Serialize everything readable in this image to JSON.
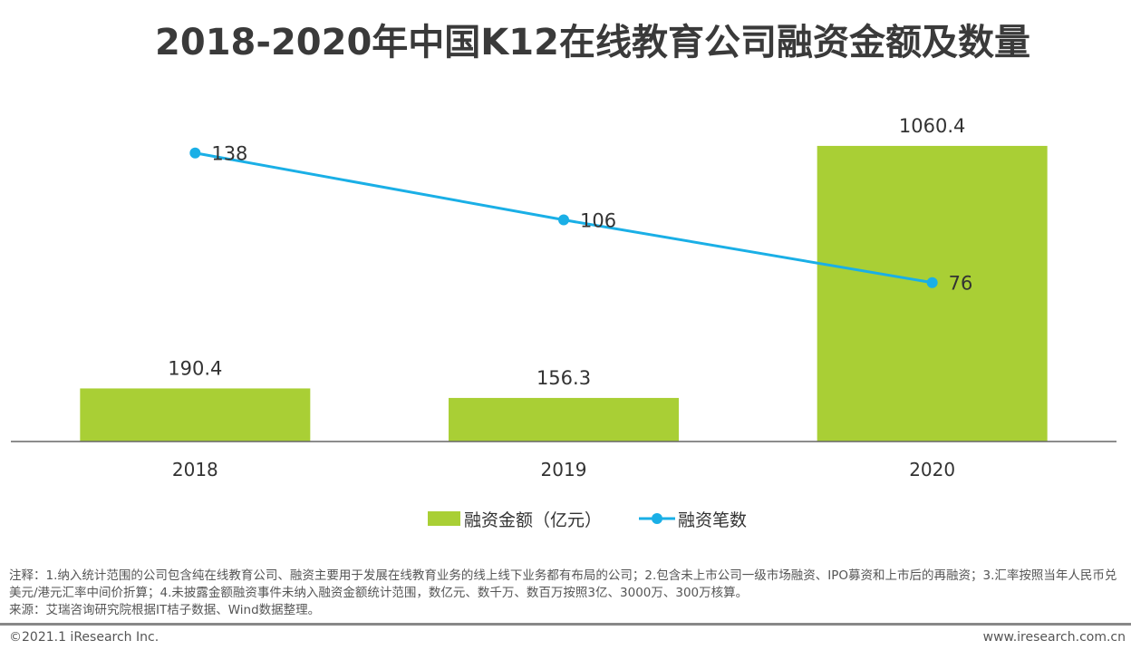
{
  "chart_data": {
    "type": "bar+line",
    "title": "2018-2020年中国K12在线教育公司融资金额及数量",
    "categories": [
      "2018",
      "2019",
      "2020"
    ],
    "series": [
      {
        "name": "融资金额（亿元）",
        "type": "bar",
        "values": [
          190.4,
          156.3,
          1060.4
        ],
        "color": "#a9cf35",
        "axis": "left",
        "ylim": [
          0,
          1200
        ]
      },
      {
        "name": "融资笔数",
        "type": "line",
        "values": [
          138,
          106,
          76
        ],
        "color": "#1aafe6",
        "axis": "right",
        "ylim": [
          0,
          160
        ]
      }
    ],
    "legend": "bottom",
    "grid": false
  },
  "notes": {
    "line1": "注释：1.纳入统计范围的公司包含纯在线教育公司、融资主要用于发展在线教育业务的线上线下业务都有布局的公司；2.包含未上市公司一级市场融资、IPO募资和上市后的再融资；3.汇率按照当年人民币兑美元/港元汇率中间价折算；4.未披露金额融资事件未纳入融资金额统计范围，数亿元、数千万、数百万按照3亿、3000万、300万核算。",
    "source": "来源：艾瑞咨询研究院根据IT桔子数据、Wind数据整理。"
  },
  "footer": {
    "copyright": "©2021.1 iResearch Inc.",
    "website": "www.iresearch.com.cn"
  }
}
